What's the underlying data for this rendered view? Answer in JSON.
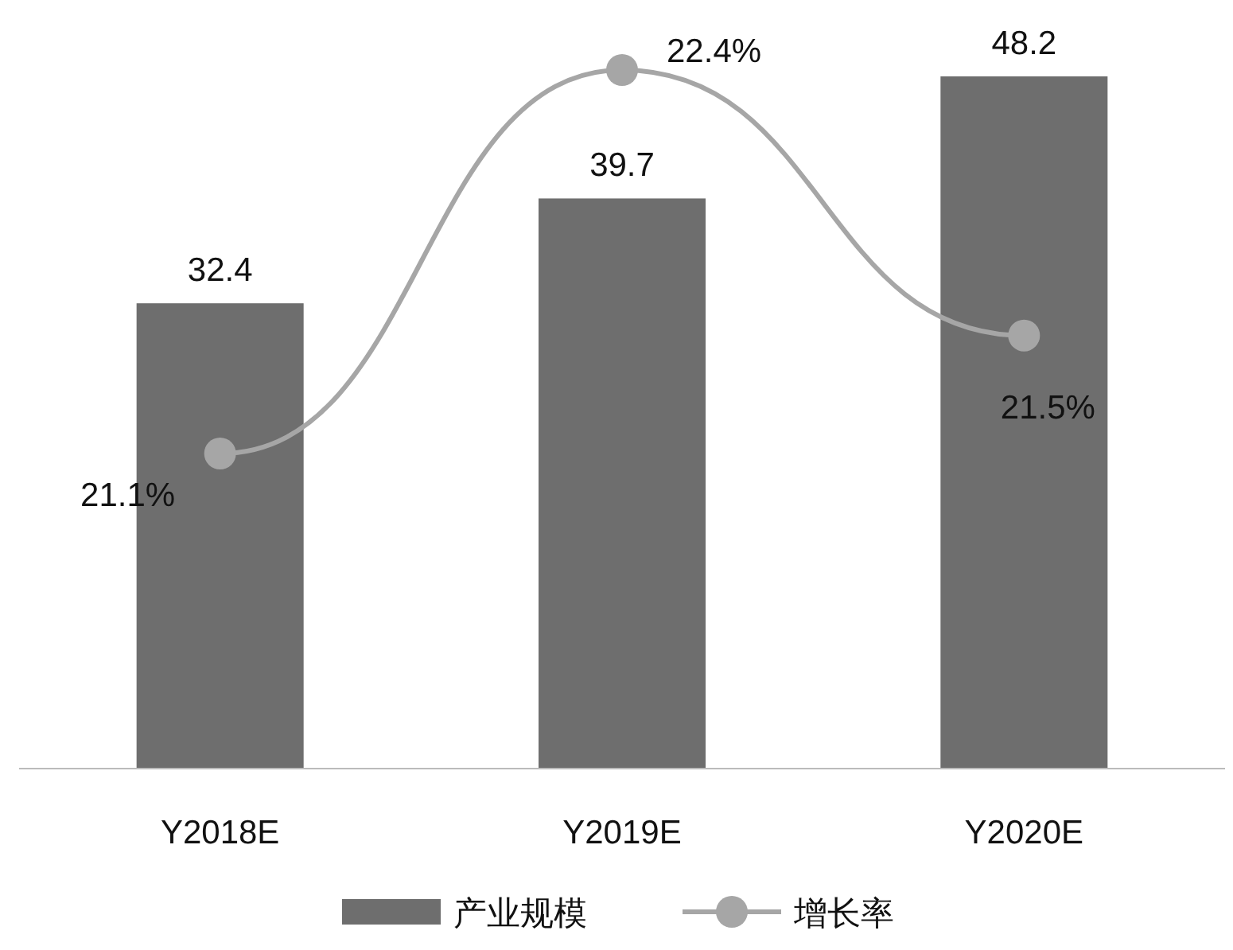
{
  "chart_data": {
    "type": "bar",
    "categories": [
      "Y2018E",
      "Y2019E",
      "Y2020E"
    ],
    "data_labels": true,
    "legend": "bottom",
    "grid": false,
    "series": [
      {
        "name": "产业规模",
        "color": "#6e6e6e",
        "values": [
          32.4,
          39.7,
          48.2
        ]
      },
      {
        "name": "增长率",
        "type": "line",
        "axis": "y2",
        "color": "#a6a6a6",
        "marker": "circle",
        "values": [
          21.1,
          22.4,
          21.5
        ],
        "value_labels": [
          "21.1%",
          "22.4%",
          "21.5%"
        ]
      }
    ]
  }
}
